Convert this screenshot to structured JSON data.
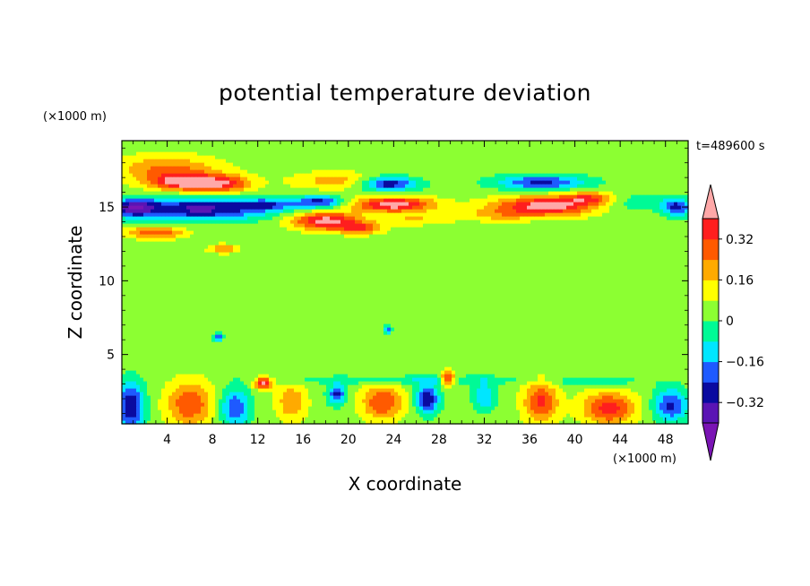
{
  "chart_data": {
    "type": "heatmap",
    "title": "potential temperature deviation",
    "xlabel": "X coordinate",
    "ylabel": "Z coordinate",
    "x_unit": "(×1000 m)",
    "y_unit": "(×1000 m)",
    "time_label": "t=489600 s",
    "xlim": [
      0,
      50
    ],
    "ylim": [
      0.3,
      19.5
    ],
    "x_ticks": [
      4,
      8,
      12,
      16,
      20,
      24,
      28,
      32,
      36,
      40,
      44,
      48
    ],
    "y_ticks": [
      5,
      10,
      15
    ],
    "colorbar": {
      "levels": [
        -0.4,
        -0.32,
        -0.24,
        -0.16,
        -0.08,
        0,
        0.08,
        0.16,
        0.24,
        0.32,
        0.4
      ],
      "labeled_ticks": [
        "0.32",
        "0.16",
        "0",
        "−0.16",
        "−0.32"
      ],
      "labeled_values": [
        0.32,
        0.16,
        0,
        -0.16,
        -0.32
      ],
      "colors": [
        "#7a14b4",
        "#5a14b4",
        "#0a0aa0",
        "#1e5aff",
        "#00e6ff",
        "#00fa96",
        "#8cff32",
        "#ffff00",
        "#ffaa00",
        "#ff5a00",
        "#ff1e1e",
        "#ffa8a8"
      ],
      "extend": "both"
    },
    "background_value": 0.04,
    "features": [
      {
        "x": 4,
        "z": 17.6,
        "value": 0.22,
        "rx": 4.5,
        "rz": 0.9
      },
      {
        "x": 5.5,
        "z": 16.7,
        "value": 0.38,
        "rx": 2.8,
        "rz": 0.55
      },
      {
        "x": 9,
        "z": 16.6,
        "value": 0.3,
        "rx": 2.5,
        "rz": 0.6
      },
      {
        "x": 19,
        "z": 16.8,
        "value": 0.16,
        "rx": 4,
        "rz": 0.6
      },
      {
        "x": 7,
        "z": 14.9,
        "value": -0.38,
        "rx": 6,
        "rz": 0.75
      },
      {
        "x": 1,
        "z": 15,
        "value": -0.33,
        "rx": 2,
        "rz": 0.6
      },
      {
        "x": 13,
        "z": 15.2,
        "value": -0.2,
        "rx": 2.5,
        "rz": 0.4
      },
      {
        "x": 17.5,
        "z": 15.4,
        "value": -0.3,
        "rx": 2,
        "rz": 0.45
      },
      {
        "x": 18,
        "z": 14.1,
        "value": 0.4,
        "rx": 3,
        "rz": 0.6
      },
      {
        "x": 21,
        "z": 13.6,
        "value": 0.25,
        "rx": 2,
        "rz": 0.4
      },
      {
        "x": 3,
        "z": 13.3,
        "value": 0.28,
        "rx": 2.5,
        "rz": 0.4
      },
      {
        "x": 9,
        "z": 12.2,
        "value": 0.2,
        "rx": 1.3,
        "rz": 0.3
      },
      {
        "x": 23.5,
        "z": 16.6,
        "value": -0.35,
        "rx": 2.5,
        "rz": 0.5
      },
      {
        "x": 24,
        "z": 15.2,
        "value": 0.42,
        "rx": 3.5,
        "rz": 0.5
      },
      {
        "x": 26,
        "z": 14.2,
        "value": 0.12,
        "rx": 3,
        "rz": 0.4
      },
      {
        "x": 37,
        "z": 16.7,
        "value": -0.3,
        "rx": 4,
        "rz": 0.5
      },
      {
        "x": 37.5,
        "z": 15.1,
        "value": 0.42,
        "rx": 4.5,
        "rz": 0.65
      },
      {
        "x": 41.5,
        "z": 15.6,
        "value": 0.3,
        "rx": 2.5,
        "rz": 0.45
      },
      {
        "x": 33,
        "z": 14.5,
        "value": 0.12,
        "rx": 3,
        "rz": 0.45
      },
      {
        "x": 44,
        "z": 15.4,
        "value": -0.14,
        "rx": 4,
        "rz": 0.6
      },
      {
        "x": 49,
        "z": 15,
        "value": -0.3,
        "rx": 1.3,
        "rz": 0.6
      },
      {
        "x": 0.8,
        "z": 1.5,
        "value": -0.36,
        "rx": 1.2,
        "rz": 1.6
      },
      {
        "x": 6,
        "z": 1.7,
        "value": 0.28,
        "rx": 2,
        "rz": 1.5
      },
      {
        "x": 10,
        "z": 1.4,
        "value": -0.28,
        "rx": 1.3,
        "rz": 1.3
      },
      {
        "x": 12.5,
        "z": 3.1,
        "value": 0.38,
        "rx": 0.8,
        "rz": 0.4
      },
      {
        "x": 15,
        "z": 1.8,
        "value": 0.2,
        "rx": 1.3,
        "rz": 1.2
      },
      {
        "x": 19,
        "z": 2.3,
        "value": -0.3,
        "rx": 0.8,
        "rz": 0.7
      },
      {
        "x": 23,
        "z": 1.8,
        "value": 0.28,
        "rx": 1.8,
        "rz": 1.2
      },
      {
        "x": 27,
        "z": 2,
        "value": -0.35,
        "rx": 1,
        "rz": 1
      },
      {
        "x": 28.8,
        "z": 3.4,
        "value": 0.4,
        "rx": 0.6,
        "rz": 0.45
      },
      {
        "x": 32,
        "z": 2.2,
        "value": -0.2,
        "rx": 1,
        "rz": 1
      },
      {
        "x": 37,
        "z": 1.8,
        "value": 0.3,
        "rx": 1.5,
        "rz": 1.4
      },
      {
        "x": 43,
        "z": 1.4,
        "value": 0.32,
        "rx": 2.3,
        "rz": 1.1
      },
      {
        "x": 48.5,
        "z": 1.6,
        "value": -0.3,
        "rx": 1.5,
        "rz": 1.1
      },
      {
        "x": 25,
        "z": 3.3,
        "value": -0.12,
        "rx": 10,
        "rz": 0.3
      },
      {
        "x": 42,
        "z": 3.2,
        "value": -0.1,
        "rx": 4,
        "rz": 0.3
      },
      {
        "x": 8.5,
        "z": 6.2,
        "value": -0.3,
        "rx": 0.4,
        "rz": 0.3
      },
      {
        "x": 23.5,
        "z": 6.7,
        "value": -0.25,
        "rx": 0.3,
        "rz": 0.3
      }
    ]
  }
}
